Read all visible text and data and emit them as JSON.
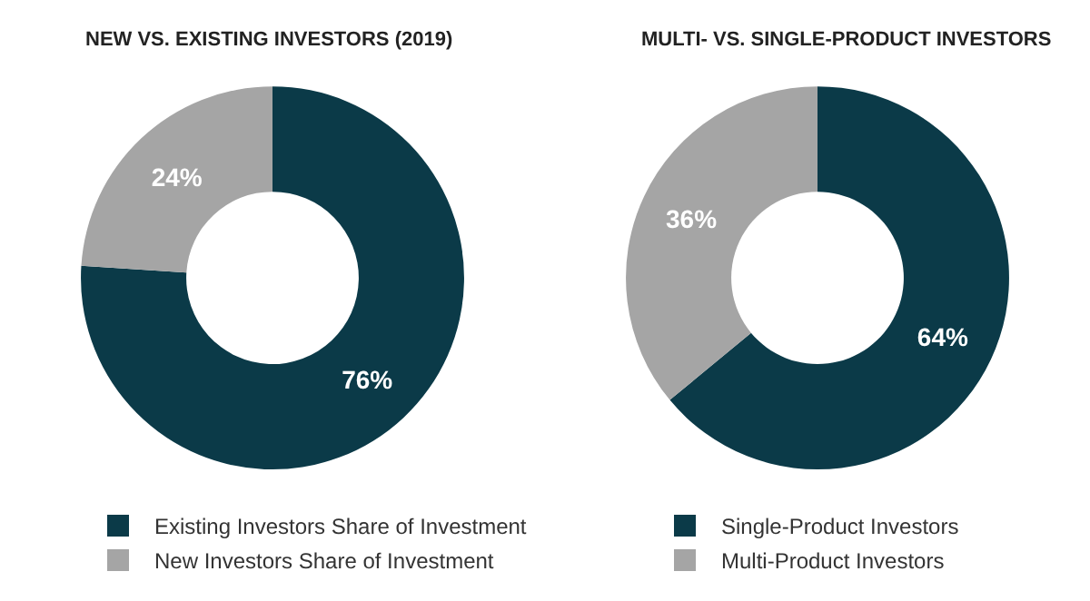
{
  "chart_data": [
    {
      "type": "donut",
      "title": "NEW VS. EXISTING INVESTORS (2019)",
      "categories": [
        "Existing Investors Share of Investment",
        "New Investors Share of Investment"
      ],
      "values": [
        76,
        24
      ],
      "colors": [
        "#0b3a48",
        "#a5a5a5"
      ],
      "value_labels": [
        "76%",
        "24%"
      ],
      "legend": "bottom"
    },
    {
      "type": "donut",
      "title": "MULTI- VS. SINGLE-PRODUCT INVESTORS",
      "categories": [
        "Single-Product Investors",
        "Multi-Product Investors"
      ],
      "values": [
        64,
        36
      ],
      "colors": [
        "#0b3a48",
        "#a5a5a5"
      ],
      "value_labels": [
        "64%",
        "36%"
      ],
      "legend": "bottom"
    }
  ]
}
